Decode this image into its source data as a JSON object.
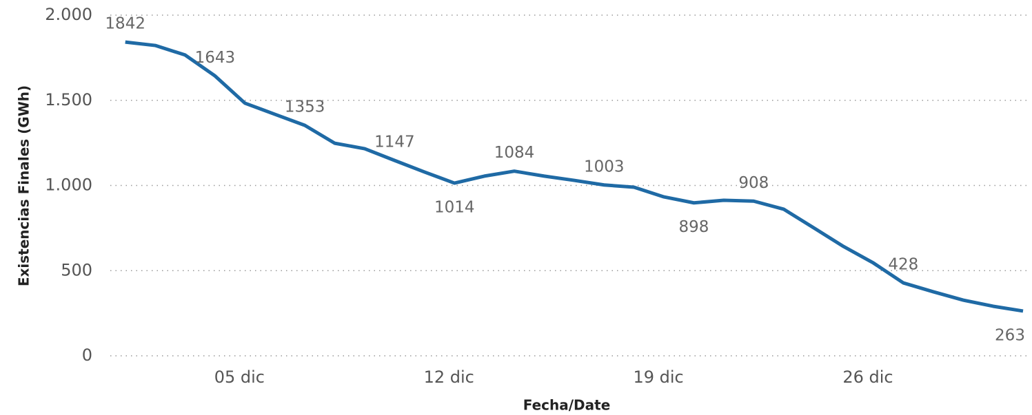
{
  "chart_data": {
    "type": "line",
    "x_label": "Fecha/Date",
    "y_label": "Existencias Finales (GWh)",
    "x": [
      1,
      2,
      3,
      4,
      5,
      6,
      7,
      8,
      9,
      10,
      11,
      12,
      13,
      14,
      15,
      16,
      17,
      18,
      19,
      20,
      21,
      22,
      23,
      24,
      25,
      26,
      27,
      28,
      29,
      30,
      31
    ],
    "series": [
      {
        "name": "Existencias Finales",
        "color": "#1f6aa5",
        "values": [
          1842,
          1822,
          1766,
          1643,
          1483,
          1418,
          1353,
          1248,
          1216,
          1147,
          1079,
          1014,
          1055,
          1084,
          1055,
          1030,
          1003,
          990,
          933,
          898,
          913,
          908,
          861,
          752,
          642,
          545,
          428,
          376,
          327,
          291,
          263
        ],
        "value_labels": [
          "1842",
          null,
          null,
          "1643",
          null,
          null,
          "1353",
          null,
          null,
          "1147",
          null,
          "1014",
          null,
          "1084",
          null,
          null,
          "1003",
          null,
          null,
          "898",
          null,
          "908",
          null,
          null,
          null,
          null,
          "428",
          null,
          null,
          null,
          "263"
        ]
      }
    ],
    "xlim": [
      0.5,
      31
    ],
    "xticks": [
      {
        "value": 5,
        "label": "05 dic"
      },
      {
        "value": 12,
        "label": "12 dic"
      },
      {
        "value": 19,
        "label": "19 dic"
      },
      {
        "value": 26,
        "label": "26 dic"
      }
    ],
    "ylim": [
      0,
      2000
    ],
    "yticks": [
      0,
      500,
      {
        "value": 1000,
        "label": "1.000"
      },
      {
        "value": 1500,
        "label": "1.500"
      },
      {
        "value": 2000,
        "label": "2.000"
      }
    ],
    "grid": true
  }
}
